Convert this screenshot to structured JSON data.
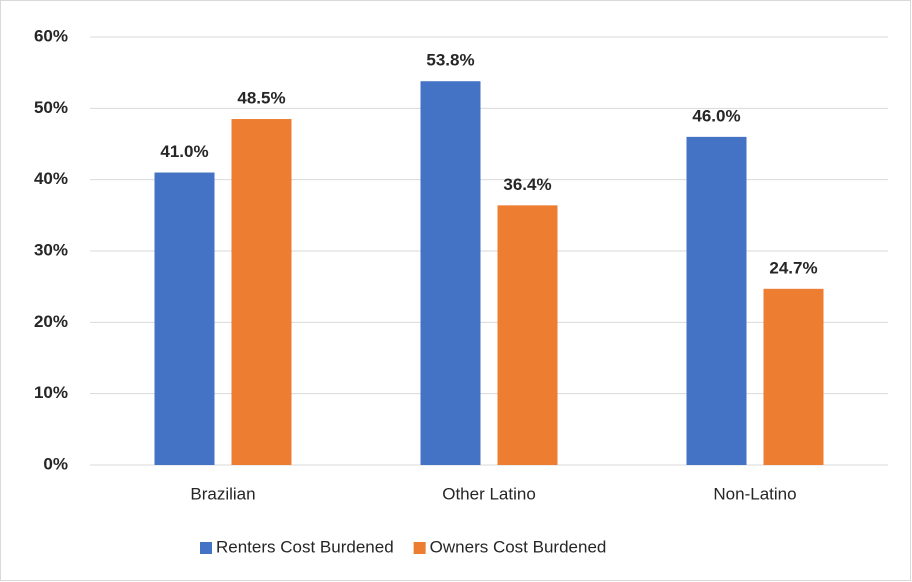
{
  "chart_data": {
    "type": "bar",
    "categories": [
      "Brazilian",
      "Other Latino",
      "Non-Latino"
    ],
    "series": [
      {
        "name": "Renters Cost Burdened",
        "color": "#4472c4",
        "values": [
          41.0,
          53.8,
          46.0
        ],
        "value_labels": [
          "41.0%",
          "53.8%",
          "46.0%"
        ]
      },
      {
        "name": "Owners Cost Burdened",
        "color": "#ed7d31",
        "values": [
          48.5,
          36.4,
          24.7
        ],
        "value_labels": [
          "48.5%",
          "36.4%",
          "24.7%"
        ]
      }
    ],
    "ylim": [
      0,
      60
    ],
    "yticks": [
      {
        "value": 0,
        "label": "0%"
      },
      {
        "value": 10,
        "label": "10%"
      },
      {
        "value": 20,
        "label": "20%"
      },
      {
        "value": 30,
        "label": "30%"
      },
      {
        "value": 40,
        "label": "40%"
      },
      {
        "value": 50,
        "label": "50%"
      },
      {
        "value": 60,
        "label": "60%"
      }
    ],
    "grid": true,
    "legend": "bottom"
  }
}
